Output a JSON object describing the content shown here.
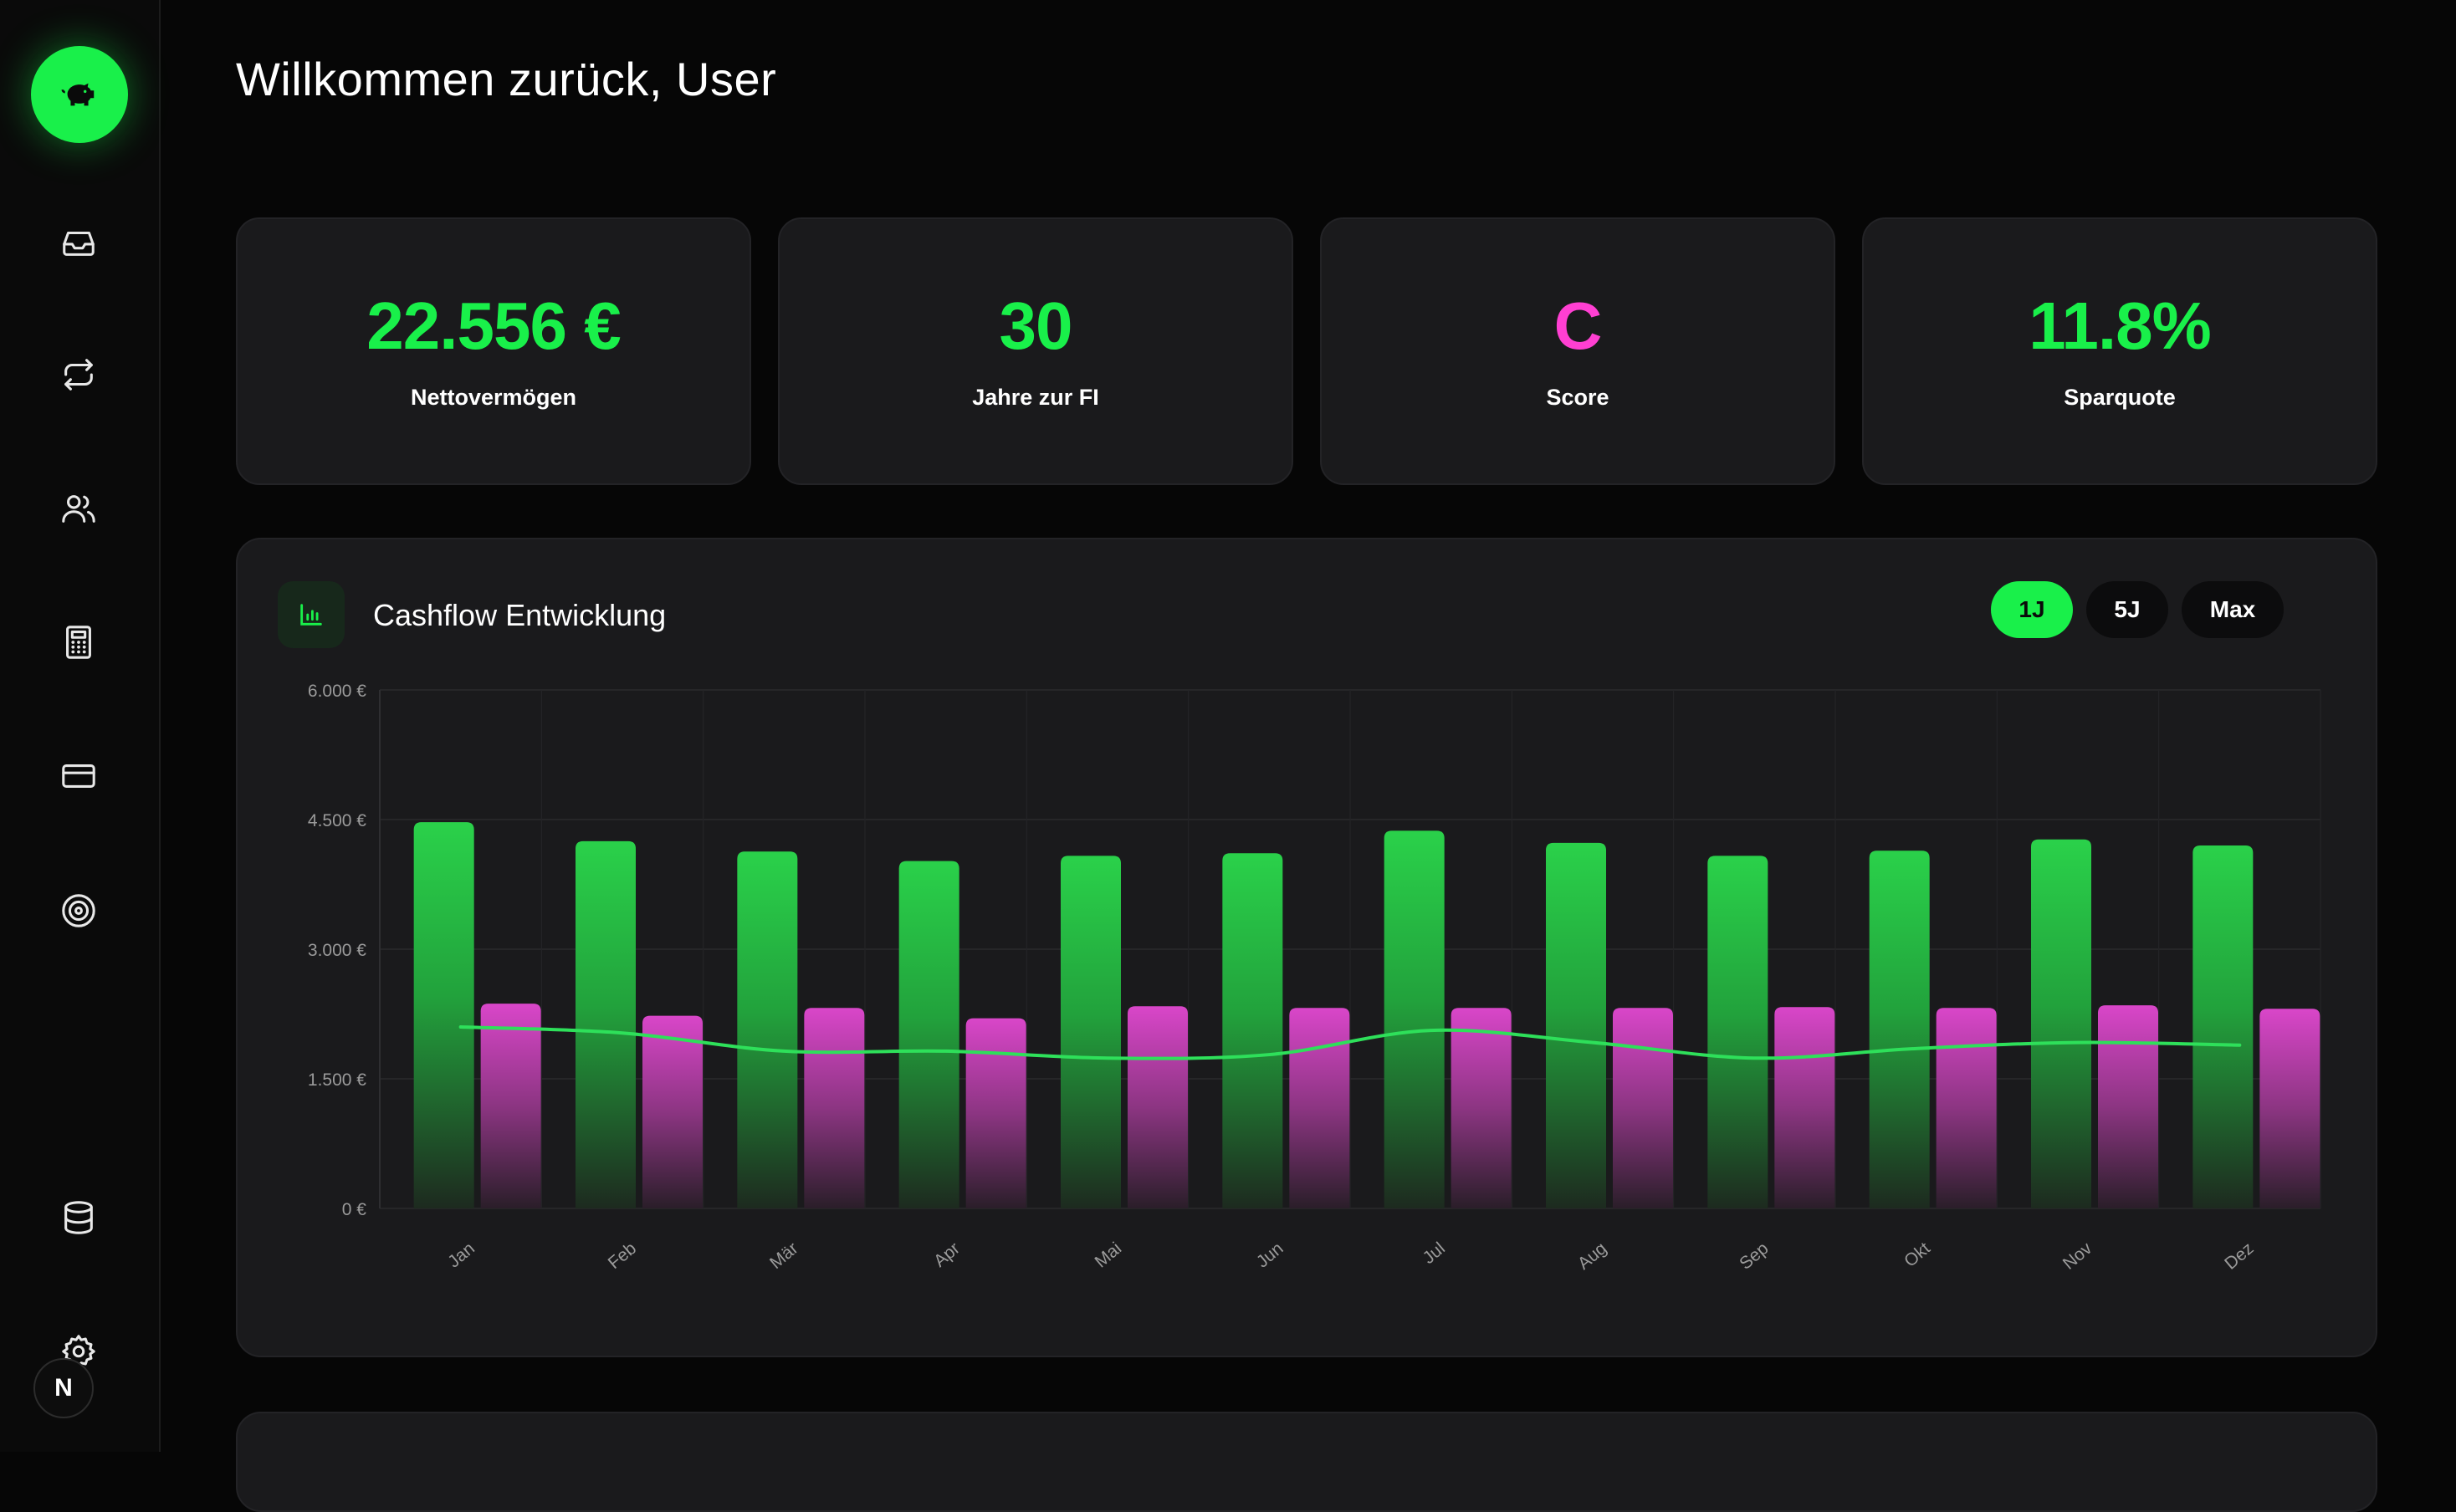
{
  "app": {
    "title": "Willkommen zurück, User"
  },
  "sidebar": {
    "icons": [
      "piggy-bank-icon",
      "inbox-icon",
      "transfer-icon",
      "users-icon",
      "calculator-icon",
      "credit-card-icon",
      "target-icon",
      "database-icon",
      "gear-icon"
    ],
    "avatar_letter": "N"
  },
  "stats": [
    {
      "value": "22.556 €",
      "label": "Nettovermögen",
      "color": "#19f04a"
    },
    {
      "value": "30",
      "label": "Jahre zur FI",
      "color": "#19f04a"
    },
    {
      "value": "C",
      "label": "Score",
      "color": "#ff3fd2"
    },
    {
      "value": "11.8%",
      "label": "Sparquote",
      "color": "#19f04a"
    }
  ],
  "chart_card": {
    "title": "Cashflow Entwicklung",
    "ranges": [
      {
        "label": "1J",
        "active": true
      },
      {
        "label": "5J",
        "active": false
      },
      {
        "label": "Max",
        "active": false
      }
    ]
  },
  "chart_data": {
    "type": "bar",
    "categories": [
      "Jan",
      "Feb",
      "Mär",
      "Apr",
      "Mai",
      "Jun",
      "Jul",
      "Aug",
      "Sep",
      "Okt",
      "Nov",
      "Dez"
    ],
    "series": [
      {
        "type": "bar",
        "color": "#2ad14a",
        "values": [
          4470,
          4250,
          4130,
          4020,
          4080,
          4110,
          4370,
          4230,
          4080,
          4140,
          4270,
          4200
        ]
      },
      {
        "type": "bar",
        "color": "#d946c9",
        "values": [
          2370,
          2230,
          2320,
          2200,
          2340,
          2320,
          2320,
          2320,
          2330,
          2320,
          2350,
          2310
        ]
      },
      {
        "type": "line",
        "color": "#2ee05a",
        "values": [
          2100,
          2030,
          1820,
          1820,
          1740,
          1780,
          2060,
          1920,
          1740,
          1850,
          1920,
          1890
        ]
      }
    ],
    "y_ticks": [
      "0 €",
      "1.500 €",
      "3.000 €",
      "4.500 €",
      "6.000 €"
    ],
    "ylim": [
      0,
      6000
    ],
    "grid": true,
    "legend": "none"
  }
}
